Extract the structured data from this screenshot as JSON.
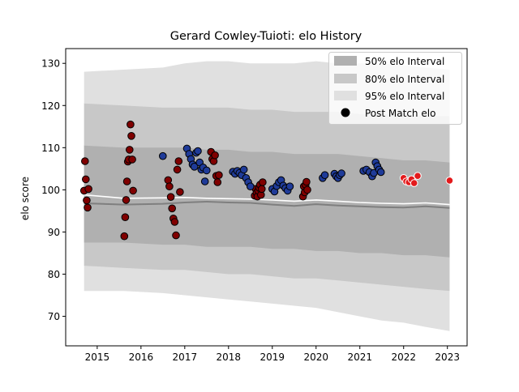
{
  "chart_data": {
    "type": "scatter",
    "title": "Gerard Cowley-Tuioti: elo History",
    "xlabel": "",
    "ylabel": "elo score",
    "xlim": [
      2014.28,
      2023.45
    ],
    "ylim": [
      63,
      133.5
    ],
    "x_ticks": [
      2015,
      2016,
      2017,
      2018,
      2019,
      2020,
      2021,
      2022,
      2023
    ],
    "y_ticks": [
      70,
      80,
      90,
      100,
      110,
      120,
      130
    ],
    "legend_position": "top-right",
    "legend": {
      "band50": "50% elo Interval",
      "band80": "80% elo Interval",
      "band95": "95% elo Interval",
      "points": "Post Match elo"
    },
    "colors": {
      "band50": "#b0b0b0",
      "band80": "#c8c8c8",
      "band95": "#e0e0e0",
      "median_line": "#7f7f7f",
      "mean_line": "#ffffff",
      "period1": "#800000",
      "period2": "#1f3b99",
      "period3": "#e31a1c",
      "edge_dark": "#000000",
      "edge_light": "#ffffff"
    },
    "bands": {
      "x": [
        2014.7,
        2015.6,
        2016.5,
        2017.0,
        2017.5,
        2018.0,
        2018.5,
        2019.0,
        2019.5,
        2020.0,
        2020.5,
        2021.0,
        2021.5,
        2022.0,
        2022.5,
        2023.05
      ],
      "p95_high": [
        128,
        128.5,
        129,
        130,
        130.5,
        130.5,
        130,
        130,
        130,
        130.5,
        130,
        130,
        130,
        129.5,
        129,
        128.5
      ],
      "p80_high": [
        120.5,
        120,
        119.5,
        119.5,
        119.5,
        119.5,
        119,
        119,
        118.5,
        118.5,
        118.5,
        118,
        118,
        118,
        117.5,
        117.5
      ],
      "p50_high": [
        110.5,
        110,
        110,
        110,
        109.5,
        109.5,
        109,
        109,
        108.5,
        108.5,
        108.5,
        108,
        107.5,
        107,
        107,
        106.5
      ],
      "p50_low": [
        87.5,
        87.5,
        87,
        87,
        86.5,
        86.5,
        86.5,
        86,
        86,
        85.5,
        85.5,
        85,
        85,
        84.5,
        84.5,
        84
      ],
      "p80_low": [
        82,
        81.5,
        81,
        81,
        80.5,
        80,
        80,
        79.5,
        79,
        79,
        78.5,
        78,
        77.5,
        77,
        76.5,
        76
      ],
      "p95_low": [
        76,
        76,
        75.5,
        75,
        74.5,
        74,
        73.5,
        73,
        72.5,
        72,
        71,
        70,
        69,
        68.5,
        67.5,
        66.5
      ],
      "median": [
        96.8,
        96.5,
        96.7,
        97.0,
        97.2,
        97.0,
        96.9,
        96.5,
        96.2,
        96.6,
        96.3,
        96.1,
        95.9,
        95.8,
        96.1,
        95.7
      ],
      "mean": [
        98.8,
        98.0,
        98.1,
        98.2,
        98.0,
        97.9,
        97.8,
        97.6,
        97.3,
        97.6,
        97.3,
        97.0,
        96.8,
        96.7,
        96.9,
        96.5
      ]
    },
    "series": [
      {
        "name": "period1",
        "x": [
          2014.7,
          2014.72,
          2014.74,
          2014.76,
          2014.78,
          2014.8,
          2015.62,
          2015.64,
          2015.66,
          2015.68,
          2015.7,
          2015.72,
          2015.74,
          2015.76,
          2015.78,
          2015.8,
          2015.82,
          2016.62,
          2016.65,
          2016.68,
          2016.71,
          2016.74,
          2016.77,
          2016.8,
          2016.83,
          2016.86,
          2016.89,
          2017.6,
          2017.63,
          2017.66,
          2017.69,
          2017.72,
          2017.75,
          2017.78,
          2018.6,
          2018.62,
          2018.64,
          2018.66,
          2018.68,
          2018.7,
          2018.72,
          2018.74,
          2018.76,
          2018.78,
          2019.7,
          2019.72,
          2019.74,
          2019.76,
          2019.78,
          2019.8
        ],
        "y": [
          99.8,
          106.8,
          102.5,
          97.5,
          95.8,
          100.2,
          89.0,
          93.5,
          97.6,
          102.0,
          106.7,
          107.2,
          109.5,
          115.5,
          112.8,
          107.2,
          99.8,
          102.3,
          100.8,
          98.3,
          95.6,
          93.2,
          92.4,
          89.2,
          104.8,
          106.8,
          99.5,
          109.0,
          107.3,
          106.8,
          108.2,
          103.3,
          101.8,
          103.5,
          98.6,
          100.2,
          99.3,
          98.4,
          99.8,
          100.5,
          101.2,
          98.8,
          100.2,
          101.8,
          98.4,
          100.8,
          99.4,
          101.2,
          101.9,
          100.0
        ]
      },
      {
        "name": "period2",
        "x": [
          2016.5,
          2017.05,
          2017.1,
          2017.14,
          2017.18,
          2017.22,
          2017.26,
          2017.3,
          2017.34,
          2017.38,
          2017.42,
          2017.46,
          2017.5,
          2018.1,
          2018.15,
          2018.2,
          2018.25,
          2018.3,
          2018.35,
          2018.4,
          2018.45,
          2018.5,
          2019.0,
          2019.05,
          2019.1,
          2019.15,
          2019.2,
          2019.25,
          2019.3,
          2019.35,
          2019.4,
          2020.15,
          2020.2,
          2020.42,
          2020.46,
          2020.5,
          2020.54,
          2020.58,
          2021.08,
          2021.15,
          2021.22,
          2021.28,
          2021.32,
          2021.36,
          2021.4,
          2021.44,
          2021.48
        ],
        "y": [
          108.0,
          109.8,
          108.5,
          107.3,
          106.0,
          105.5,
          108.8,
          109.2,
          106.5,
          104.8,
          105.3,
          102.0,
          104.6,
          104.3,
          103.8,
          104.5,
          104.0,
          103.5,
          104.8,
          102.8,
          101.8,
          100.8,
          100.2,
          99.6,
          100.9,
          101.8,
          102.3,
          101.0,
          100.4,
          99.8,
          100.8,
          102.8,
          103.5,
          103.8,
          103.2,
          102.8,
          103.5,
          103.9,
          104.5,
          104.8,
          104.2,
          103.2,
          104.0,
          106.5,
          105.6,
          104.8,
          104.2
        ]
      },
      {
        "name": "period3",
        "x": [
          2022.0,
          2022.06,
          2022.12,
          2022.18,
          2022.24,
          2022.32,
          2023.05
        ],
        "y": [
          102.8,
          102.0,
          101.8,
          102.5,
          101.6,
          103.3,
          102.2
        ]
      }
    ]
  }
}
